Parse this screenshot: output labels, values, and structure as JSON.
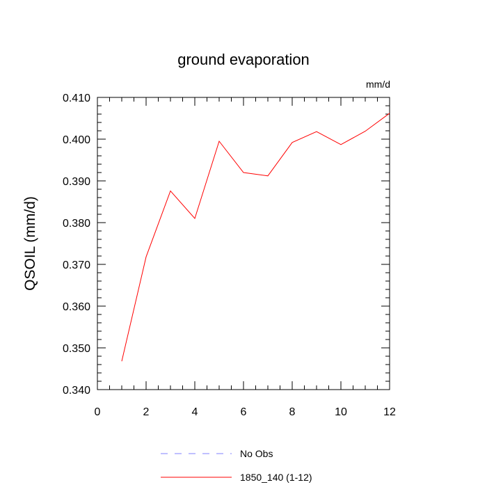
{
  "chart_data": {
    "type": "line",
    "title": "ground evaporation",
    "units_label": "mm/d",
    "ylabel": "QSOIL  (mm/d)",
    "xlabel": "",
    "xlim": [
      0,
      12
    ],
    "ylim": [
      0.34,
      0.41
    ],
    "x_ticks": [
      0,
      2,
      4,
      6,
      8,
      10,
      12
    ],
    "x_tick_labels": [
      "0",
      "2",
      "4",
      "6",
      "8",
      "10",
      "12"
    ],
    "y_ticks": [
      0.34,
      0.35,
      0.36,
      0.37,
      0.38,
      0.39,
      0.4,
      0.41
    ],
    "y_tick_labels": [
      "0.340",
      "0.350",
      "0.360",
      "0.370",
      "0.380",
      "0.390",
      "0.400",
      "0.410"
    ],
    "grid": false,
    "legend_position": "bottom-center",
    "series": [
      {
        "name": "No Obs",
        "color": "#8080ff",
        "dash": "dashed",
        "x": [],
        "y": []
      },
      {
        "name": "1850_140 (1-12)",
        "color": "#ff0000",
        "dash": "solid",
        "x": [
          1,
          2,
          3,
          4,
          5,
          6,
          7,
          8,
          9,
          10,
          11,
          12
        ],
        "y": [
          0.3468,
          0.3718,
          0.3876,
          0.381,
          0.3995,
          0.392,
          0.3912,
          0.3992,
          0.4018,
          0.3987,
          0.4019,
          0.4062
        ]
      }
    ]
  }
}
